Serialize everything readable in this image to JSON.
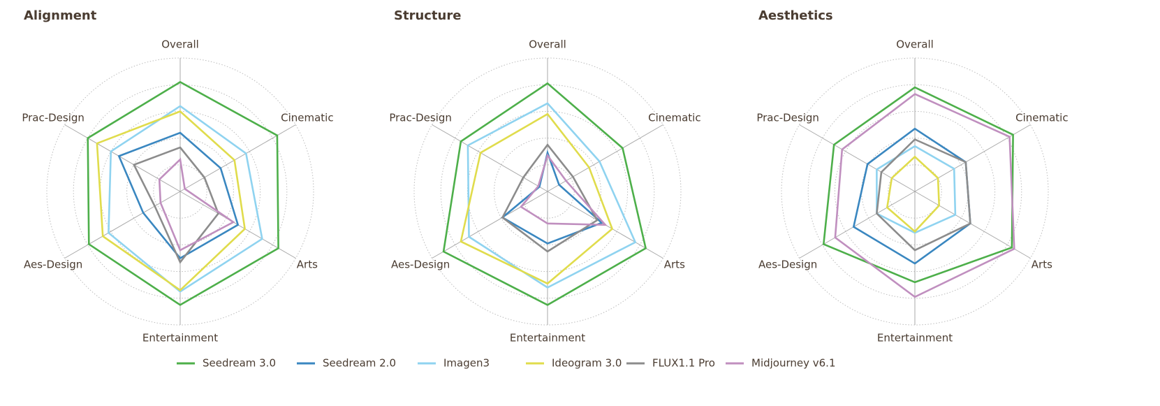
{
  "chart_data": [
    {
      "type": "radar",
      "title": "Alignment",
      "categories": [
        "Overall",
        "Cinematic",
        "Arts",
        "Entertainment",
        "Aes-Design",
        "Prac-Design"
      ],
      "rlim": [
        0,
        5
      ],
      "rticks": [
        1,
        2,
        3,
        4,
        5
      ],
      "grid": true,
      "series": [
        {
          "name": "Seedream 3.0",
          "color": "#4daf4a",
          "values": [
            4.1,
            4.2,
            4.25,
            4.25,
            3.95,
            4.0
          ]
        },
        {
          "name": "Seedream 2.0",
          "color": "#3a87c0",
          "values": [
            2.2,
            1.75,
            2.5,
            2.5,
            1.6,
            2.65
          ]
        },
        {
          "name": "Imagen3",
          "color": "#8fd3f0",
          "values": [
            3.2,
            2.85,
            3.55,
            3.75,
            3.1,
            3.0
          ]
        },
        {
          "name": "Ideogram 3.0",
          "color": "#e0dc4c",
          "values": [
            3.0,
            2.35,
            2.8,
            3.7,
            3.35,
            3.6
          ]
        },
        {
          "name": "FLUX1.1 Pro",
          "color": "#8c8c8c",
          "values": [
            1.65,
            1.05,
            1.65,
            2.65,
            1.1,
            2.0
          ]
        },
        {
          "name": "Midjourney v6.1",
          "color": "#c08fbf",
          "values": [
            1.2,
            0.2,
            2.3,
            2.2,
            0.85,
            0.9
          ]
        }
      ]
    },
    {
      "type": "radar",
      "title": "Structure",
      "categories": [
        "Overall",
        "Cinematic",
        "Arts",
        "Entertainment",
        "Aes-Design",
        "Prac-Design"
      ],
      "rlim": [
        0,
        5
      ],
      "rticks": [
        1,
        2,
        3,
        4,
        5
      ],
      "grid": true,
      "series": [
        {
          "values": [
            4.05,
            3.25,
            4.25,
            4.25,
            4.5,
            3.75
          ]
        },
        {
          "values": [
            1.45,
            0.5,
            2.35,
            1.95,
            1.95,
            0.35
          ]
        },
        {
          "values": [
            3.3,
            2.25,
            3.8,
            3.6,
            3.4,
            3.45
          ]
        },
        {
          "values": [
            2.9,
            1.8,
            2.8,
            3.45,
            3.75,
            2.9
          ]
        },
        {
          "values": [
            1.75,
            1.1,
            2.15,
            2.25,
            1.95,
            1.05
          ]
        },
        {
          "values": [
            1.35,
            0.8,
            2.5,
            1.2,
            1.15,
            0.4
          ]
        }
      ]
    },
    {
      "type": "radar",
      "title": "Aesthetics",
      "categories": [
        "Overall",
        "Cinematic",
        "Arts",
        "Entertainment",
        "Aes-Design",
        "Prac-Design"
      ],
      "rlim": [
        0,
        5
      ],
      "rticks": [
        1,
        2,
        3,
        4,
        5
      ],
      "grid": true,
      "series": [
        {
          "values": [
            3.9,
            4.25,
            4.2,
            3.4,
            3.95,
            3.5
          ]
        },
        {
          "values": [
            2.35,
            2.2,
            2.4,
            2.7,
            2.65,
            2.05
          ]
        },
        {
          "values": [
            1.7,
            1.7,
            1.75,
            1.55,
            1.65,
            1.65
          ]
        },
        {
          "values": [
            1.3,
            1.0,
            1.05,
            1.5,
            1.2,
            1.0
          ]
        },
        {
          "values": [
            1.95,
            2.2,
            2.4,
            2.2,
            1.65,
            1.45
          ]
        },
        {
          "values": [
            3.65,
            4.1,
            4.3,
            3.95,
            3.45,
            3.15
          ]
        }
      ]
    }
  ]
}
